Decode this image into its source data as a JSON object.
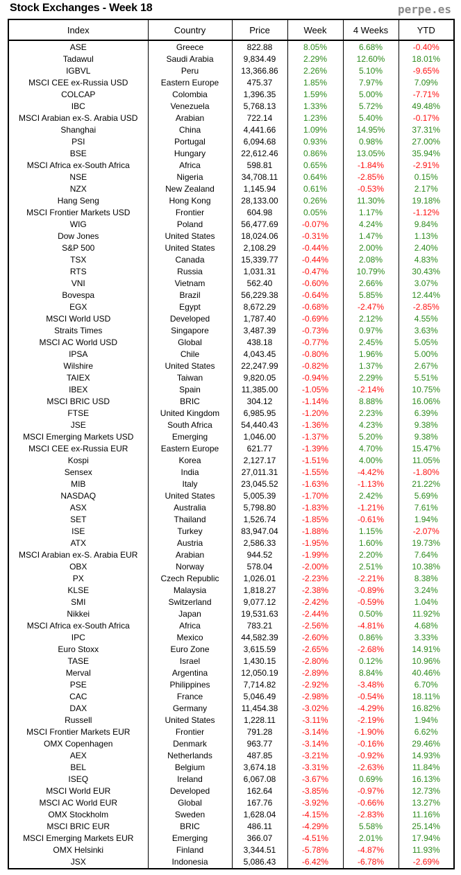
{
  "header": {
    "title": "Stock Exchanges - Week 18",
    "brand": "perpe.es"
  },
  "columns": [
    "Index",
    "Country",
    "Price",
    "Week",
    "4 Weeks",
    "YTD"
  ],
  "colors": {
    "positive": "#2e8b1e",
    "negative": "#ff1010"
  },
  "rows": [
    [
      "ASE",
      "Greece",
      "822.88",
      "8.05%",
      "6.68%",
      "-0.40%"
    ],
    [
      "Tadawul",
      "Saudi Arabia",
      "9,834.49",
      "2.29%",
      "12.60%",
      "18.01%"
    ],
    [
      "IGBVL",
      "Peru",
      "13,366.86",
      "2.26%",
      "5.10%",
      "-9.65%"
    ],
    [
      "MSCI CEE ex-Russia USD",
      "Eastern Europe",
      "475.37",
      "1.85%",
      "7.97%",
      "7.09%"
    ],
    [
      "COLCAP",
      "Colombia",
      "1,396.35",
      "1.59%",
      "5.00%",
      "-7.71%"
    ],
    [
      "IBC",
      "Venezuela",
      "5,768.13",
      "1.33%",
      "5.72%",
      "49.48%"
    ],
    [
      "MSCI Arabian ex-S. Arabia USD",
      "Arabian",
      "722.14",
      "1.23%",
      "5.40%",
      "-0.17%"
    ],
    [
      "Shanghai",
      "China",
      "4,441.66",
      "1.09%",
      "14.95%",
      "37.31%"
    ],
    [
      "PSI",
      "Portugal",
      "6,094.68",
      "0.93%",
      "0.98%",
      "27.00%"
    ],
    [
      "BSE",
      "Hungary",
      "22,612.46",
      "0.86%",
      "13.05%",
      "35.94%"
    ],
    [
      "MSCI Africa ex-South Africa",
      "Africa",
      "598.81",
      "0.65%",
      "-1.84%",
      "-2.91%"
    ],
    [
      "NSE",
      "Nigeria",
      "34,708.11",
      "0.64%",
      "-2.85%",
      "0.15%"
    ],
    [
      "NZX",
      "New Zealand",
      "1,145.94",
      "0.61%",
      "-0.53%",
      "2.17%"
    ],
    [
      "Hang Seng",
      "Hong Kong",
      "28,133.00",
      "0.26%",
      "11.30%",
      "19.18%"
    ],
    [
      "MSCI Frontier Markets USD",
      "Frontier",
      "604.98",
      "0.05%",
      "1.17%",
      "-1.12%"
    ],
    [
      "WIG",
      "Poland",
      "56,477.69",
      "-0.07%",
      "4.24%",
      "9.84%"
    ],
    [
      "Dow Jones",
      "United States",
      "18,024.06",
      "-0.31%",
      "1.47%",
      "1.13%"
    ],
    [
      "S&P 500",
      "United States",
      "2,108.29",
      "-0.44%",
      "2.00%",
      "2.40%"
    ],
    [
      "TSX",
      "Canada",
      "15,339.77",
      "-0.44%",
      "2.08%",
      "4.83%"
    ],
    [
      "RTS",
      "Russia",
      "1,031.31",
      "-0.47%",
      "10.79%",
      "30.43%"
    ],
    [
      "VNI",
      "Vietnam",
      "562.40",
      "-0.60%",
      "2.66%",
      "3.07%"
    ],
    [
      "Bovespa",
      "Brazil",
      "56,229.38",
      "-0.64%",
      "5.85%",
      "12.44%"
    ],
    [
      "EGX",
      "Egypt",
      "8,672.29",
      "-0.68%",
      "-2.47%",
      "-2.85%"
    ],
    [
      "MSCI World USD",
      "Developed",
      "1,787.40",
      "-0.69%",
      "2.12%",
      "4.55%"
    ],
    [
      "Straits Times",
      "Singapore",
      "3,487.39",
      "-0.73%",
      "0.97%",
      "3.63%"
    ],
    [
      "MSCI AC World USD",
      "Global",
      "438.18",
      "-0.77%",
      "2.45%",
      "5.05%"
    ],
    [
      "IPSA",
      "Chile",
      "4,043.45",
      "-0.80%",
      "1.96%",
      "5.00%"
    ],
    [
      "Wilshire",
      "United States",
      "22,247.99",
      "-0.82%",
      "1.37%",
      "2.67%"
    ],
    [
      "TAIEX",
      "Taiwan",
      "9,820.05",
      "-0.94%",
      "2.29%",
      "5.51%"
    ],
    [
      "IBEX",
      "Spain",
      "11,385.00",
      "-1.05%",
      "-2.14%",
      "10.75%"
    ],
    [
      "MSCI BRIC USD",
      "BRIC",
      "304.12",
      "-1.14%",
      "8.88%",
      "16.06%"
    ],
    [
      "FTSE",
      "United Kingdom",
      "6,985.95",
      "-1.20%",
      "2.23%",
      "6.39%"
    ],
    [
      "JSE",
      "South Africa",
      "54,440.43",
      "-1.36%",
      "4.23%",
      "9.38%"
    ],
    [
      "MSCI Emerging Markets USD",
      "Emerging",
      "1,046.00",
      "-1.37%",
      "5.20%",
      "9.38%"
    ],
    [
      "MSCI CEE ex-Russia EUR",
      "Eastern Europe",
      "621.77",
      "-1.39%",
      "4.70%",
      "15.47%"
    ],
    [
      "Kospi",
      "Korea",
      "2,127.17",
      "-1.51%",
      "4.00%",
      "11.05%"
    ],
    [
      "Sensex",
      "India",
      "27,011.31",
      "-1.55%",
      "-4.42%",
      "-1.80%"
    ],
    [
      "MIB",
      "Italy",
      "23,045.52",
      "-1.63%",
      "-1.13%",
      "21.22%"
    ],
    [
      "NASDAQ",
      "United States",
      "5,005.39",
      "-1.70%",
      "2.42%",
      "5.69%"
    ],
    [
      "ASX",
      "Australia",
      "5,798.80",
      "-1.83%",
      "-1.21%",
      "7.61%"
    ],
    [
      "SET",
      "Thailand",
      "1,526.74",
      "-1.85%",
      "-0.61%",
      "1.94%"
    ],
    [
      "ISE",
      "Turkey",
      "83,947.04",
      "-1.88%",
      "1.15%",
      "-2.07%"
    ],
    [
      "ATX",
      "Austria",
      "2,586.33",
      "-1.95%",
      "1.60%",
      "19.73%"
    ],
    [
      "MSCI Arabian ex-S. Arabia EUR",
      "Arabian",
      "944.52",
      "-1.99%",
      "2.20%",
      "7.64%"
    ],
    [
      "OBX",
      "Norway",
      "578.04",
      "-2.00%",
      "2.51%",
      "10.38%"
    ],
    [
      "PX",
      "Czech Republic",
      "1,026.01",
      "-2.23%",
      "-2.21%",
      "8.38%"
    ],
    [
      "KLSE",
      "Malaysia",
      "1,818.27",
      "-2.38%",
      "-0.89%",
      "3.24%"
    ],
    [
      "SMI",
      "Switzerland",
      "9,077.12",
      "-2.42%",
      "-0.59%",
      "1.04%"
    ],
    [
      "Nikkei",
      "Japan",
      "19,531.63",
      "-2.44%",
      "0.50%",
      "11.92%"
    ],
    [
      "MSCI Africa ex-South Africa",
      "Africa",
      "783.21",
      "-2.56%",
      "-4.81%",
      "4.68%"
    ],
    [
      "IPC",
      "Mexico",
      "44,582.39",
      "-2.60%",
      "0.86%",
      "3.33%"
    ],
    [
      "Euro Stoxx",
      "Euro Zone",
      "3,615.59",
      "-2.65%",
      "-2.68%",
      "14.91%"
    ],
    [
      "TASE",
      "Israel",
      "1,430.15",
      "-2.80%",
      "0.12%",
      "10.96%"
    ],
    [
      "Merval",
      "Argentina",
      "12,050.19",
      "-2.89%",
      "8.84%",
      "40.46%"
    ],
    [
      "PSE",
      "Philippines",
      "7,714.82",
      "-2.92%",
      "-3.48%",
      "6.70%"
    ],
    [
      "CAC",
      "France",
      "5,046.49",
      "-2.98%",
      "-0.54%",
      "18.11%"
    ],
    [
      "DAX",
      "Germany",
      "11,454.38",
      "-3.02%",
      "-4.29%",
      "16.82%"
    ],
    [
      "Russell",
      "United States",
      "1,228.11",
      "-3.11%",
      "-2.19%",
      "1.94%"
    ],
    [
      "MSCI Frontier Markets EUR",
      "Frontier",
      "791.28",
      "-3.14%",
      "-1.90%",
      "6.62%"
    ],
    [
      "OMX Copenhagen",
      "Denmark",
      "963.77",
      "-3.14%",
      "-0.16%",
      "29.46%"
    ],
    [
      "AEX",
      "Netherlands",
      "487.85",
      "-3.21%",
      "-0.92%",
      "14.93%"
    ],
    [
      "BEL",
      "Belgium",
      "3,674.18",
      "-3.31%",
      "-2.63%",
      "11.84%"
    ],
    [
      "ISEQ",
      "Ireland",
      "6,067.08",
      "-3.67%",
      "0.69%",
      "16.13%"
    ],
    [
      "MSCI World EUR",
      "Developed",
      "162.64",
      "-3.85%",
      "-0.97%",
      "12.73%"
    ],
    [
      "MSCI AC World EUR",
      "Global",
      "167.76",
      "-3.92%",
      "-0.66%",
      "13.27%"
    ],
    [
      "OMX Stockholm",
      "Sweden",
      "1,628.04",
      "-4.15%",
      "-2.83%",
      "11.16%"
    ],
    [
      "MSCI BRIC EUR",
      "BRIC",
      "486.11",
      "-4.29%",
      "5.58%",
      "25.14%"
    ],
    [
      "MSCI Emerging Markets EUR",
      "Emerging",
      "366.07",
      "-4.51%",
      "2.01%",
      "17.94%"
    ],
    [
      "OMX Helsinki",
      "Finland",
      "3,344.51",
      "-5.78%",
      "-4.87%",
      "11.93%"
    ],
    [
      "JSX",
      "Indonesia",
      "5,086.43",
      "-6.42%",
      "-6.78%",
      "-2.69%"
    ]
  ]
}
